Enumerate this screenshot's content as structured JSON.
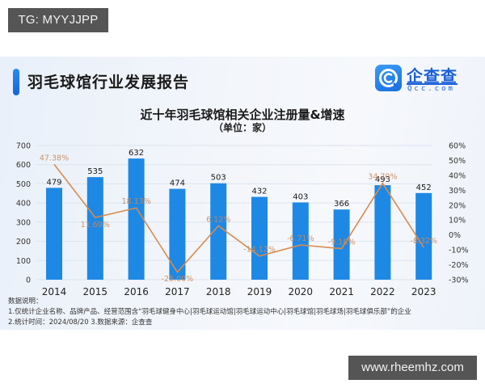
{
  "watermarks": {
    "top_left": "TG: MYYJJPP",
    "bottom_right": "www.rheemhz.com"
  },
  "header": {
    "report_title": "羽毛球馆行业发展报告",
    "logo_cn": "企查查",
    "logo_en": "Qcc.com",
    "brand_color": "#1a6fe0"
  },
  "chart_data": {
    "type": "bar",
    "title": "近十年羽毛球馆相关企业注册量&增速",
    "subtitle": "（单位：家）",
    "categories": [
      "2014",
      "2015",
      "2016",
      "2017",
      "2018",
      "2019",
      "2020",
      "2021",
      "2022",
      "2023"
    ],
    "series": [
      {
        "name": "注册量",
        "type": "bar",
        "axis": "left",
        "color": "#1e88e5",
        "values": [
          479,
          535,
          632,
          474,
          503,
          432,
          403,
          366,
          493,
          452
        ],
        "labels": [
          "479",
          "535",
          "632",
          "474",
          "503",
          "432",
          "403",
          "366",
          "493",
          "452"
        ]
      },
      {
        "name": "增速",
        "type": "line",
        "axis": "right",
        "color": "#d98b4e",
        "values": [
          47.38,
          11.69,
          18.13,
          -25.0,
          6.12,
          -14.12,
          -6.71,
          -9.18,
          34.7,
          -8.32
        ],
        "labels": [
          "47.38%",
          "11.69%",
          "18.13%",
          "-25.00%",
          "6.12%",
          "-14.12%",
          "-6.71%",
          "-9.18%",
          "34.70%",
          "-8.32%"
        ]
      }
    ],
    "ylim": [
      0,
      700
    ],
    "yticks": [
      "0",
      "100",
      "200",
      "300",
      "400",
      "500",
      "600",
      "700"
    ],
    "y2lim": [
      -30,
      60
    ],
    "y2ticks": [
      "-30%",
      "-20%",
      "-10%",
      "0%",
      "10%",
      "20%",
      "30%",
      "40%",
      "50%",
      "60%"
    ],
    "xlabel": "",
    "ylabel": "",
    "grid": true,
    "legend": "none"
  },
  "notes": {
    "heading": "数据说明：",
    "line1": "1.仅统计企业名称、品牌产品、经营范围含“羽毛球健身中心|羽毛球运动馆|羽毛球运动中心|羽毛球馆|羽毛球场|羽毛球俱乐部”的企业",
    "line2": "2.统计时间：2024/08/20    3.数据来源：企查查"
  }
}
